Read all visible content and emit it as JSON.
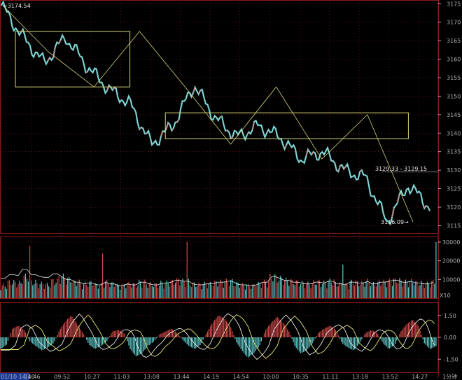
{
  "chart_data": [
    {
      "type": "line",
      "name_panel": "price",
      "y_ticks": [
        3115,
        3120,
        3125,
        3130,
        3135,
        3140,
        3145,
        3150,
        3155,
        3160,
        3165,
        3170,
        3175
      ],
      "ylim": [
        3113,
        3176
      ],
      "x": [
        "14:10",
        "14:46",
        "09:52",
        "10:27",
        "11:03",
        "13:08",
        "13:44",
        "14:19",
        "14:54",
        "10:00",
        "10:35",
        "11:11",
        "13:18",
        "13:52",
        "14:27"
      ],
      "price": [
        3174.5,
        3166,
        3159,
        3166,
        3158,
        3152,
        3148,
        3137,
        3142,
        3153,
        3144,
        3139,
        3142,
        3139,
        3133,
        3135,
        3130,
        3128,
        3116,
        3126,
        3120
      ],
      "labels": {
        "high": "3174.54",
        "low": "3116.09",
        "range": "3129.33 - 3129.15"
      },
      "boxes": [
        {
          "x": [
            0,
            6
          ],
          "y": [
            3152.5,
            3167.5
          ]
        },
        {
          "x": [
            7,
            19
          ],
          "y": [
            3138.5,
            3145.5
          ]
        }
      ],
      "zigzag": [
        3174.5,
        3162,
        3152.5,
        3167.5,
        3152.5,
        3137,
        3152.5,
        3133,
        3145,
        3116
      ],
      "colors": {
        "up": "#d24a4a",
        "down": "#5ec8c8",
        "line": "#e8e8e8",
        "box": "#d8d878",
        "grid": "#8b1a1a"
      }
    },
    {
      "type": "bar",
      "name_panel": "volume",
      "y_ticks": [
        10000,
        20000,
        30000
      ],
      "ylim": [
        0,
        33000
      ],
      "volume_profile": [
        7000,
        9000,
        8500,
        12000,
        9000,
        8000,
        7500,
        9500,
        12000,
        10500,
        9000,
        8000,
        8500,
        7500,
        9000,
        8000,
        7000,
        8000,
        7500,
        9000,
        8000,
        7500,
        8500,
        9000,
        10000,
        9500,
        8000,
        7500,
        8000,
        8500,
        9000,
        9500,
        8000,
        7500,
        7000,
        8000,
        9000,
        12000,
        11000,
        10000,
        9000,
        8500,
        8000,
        9000,
        8500,
        9500,
        8000,
        7500,
        9000,
        8500,
        9500,
        8000,
        9000,
        9500,
        10000,
        9000,
        9500,
        8500,
        8000,
        9000
      ],
      "multiplier": "X10",
      "colors": {
        "up": "#d24a4a",
        "down": "#5ec8c8",
        "ma1": "#e8e8e8",
        "ma2": "#c87dd8"
      }
    },
    {
      "type": "area",
      "name_panel": "macd",
      "y_ticks": [
        1.5,
        0,
        -1.5
      ],
      "ylim": [
        -2.4,
        2.4
      ],
      "bars": [
        -0.8,
        -0.5,
        0.6,
        0.8,
        0.5,
        -0.3,
        -0.6,
        -0.9,
        -0.7,
        -0.4,
        0.5,
        1.1,
        1.5,
        0.9,
        0.3,
        -0.5,
        -0.8,
        -0.6,
        -0.3,
        0.4,
        0.5,
        0.3,
        -0.8,
        -1.3,
        -1.1,
        -0.6,
        -0.3,
        0.2,
        0.4,
        0.6,
        0.3,
        -0.2,
        -0.6,
        -0.8,
        -0.5,
        0.3,
        1.0,
        1.5,
        1.3,
        0.8,
        -0.3,
        -0.9,
        -1.4,
        -1.1,
        -0.6,
        0.5,
        1.0,
        1.4,
        1.0,
        0.4,
        -0.6,
        -1.1,
        -0.9,
        -0.4,
        0.3,
        0.6,
        0.8,
        0.5,
        -0.4,
        -0.7,
        -0.9,
        -0.4,
        0.3,
        0.5,
        0.3,
        -0.4,
        -0.8,
        -0.5,
        0.4,
        0.9,
        1.2,
        0.8,
        -0.4,
        -0.8,
        -0.6
      ],
      "colors": {
        "up": "#d24a4a",
        "down": "#5ec8c8",
        "dif": "#e8e8e8",
        "dea": "#e8e878"
      }
    }
  ],
  "footer": {
    "datetime": "01/10 14:10",
    "period": "1分钟"
  }
}
